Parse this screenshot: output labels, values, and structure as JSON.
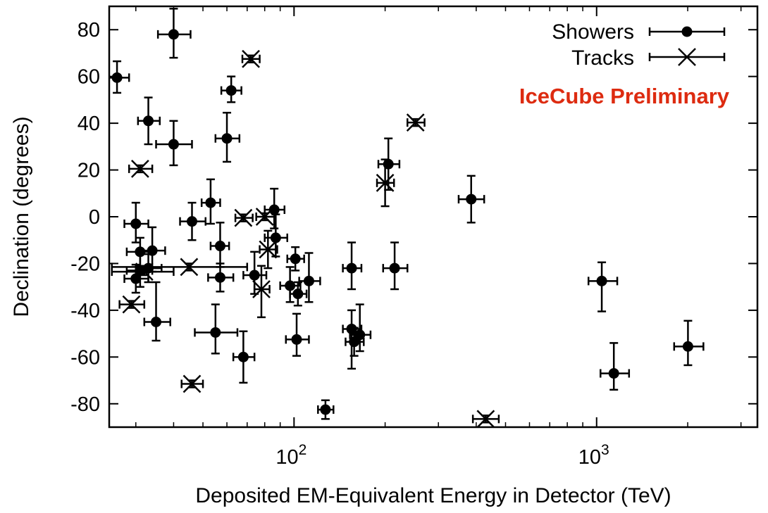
{
  "chart_data": {
    "type": "scatter",
    "title": "",
    "xlabel": "Deposited EM-Equivalent Energy in Detector (TeV)",
    "ylabel": "Declination (degrees)",
    "xscale": "log",
    "xlim": [
      24.5,
      3400
    ],
    "ylim": [
      -90,
      90
    ],
    "x_ticks": [
      {
        "value": 100,
        "base": "10",
        "exp": "2"
      },
      {
        "value": 1000,
        "base": "10",
        "exp": "3"
      }
    ],
    "y_ticks": [
      80,
      60,
      40,
      20,
      0,
      -20,
      -40,
      -60,
      -80
    ],
    "y_tick_labels": [
      "80",
      "60",
      "40",
      "20",
      "0",
      "-20",
      "-40",
      "-60",
      "-80"
    ],
    "grid": false,
    "legend_position": "top-right",
    "annotation": {
      "text": "IceCube Preliminary",
      "color": "#dd2b10"
    },
    "series": [
      {
        "name": "Showers",
        "marker": "circle",
        "points": [
          {
            "x": 26,
            "y": 59.5,
            "xerr": [
              2.2,
              2.5
            ],
            "yerr": [
              6.5,
              7
            ]
          },
          {
            "x": 40,
            "y": 78,
            "xerr": [
              4.5,
              5.5
            ],
            "yerr": [
              10,
              11
            ]
          },
          {
            "x": 33,
            "y": 41,
            "xerr": [
              2.5,
              3
            ],
            "yerr": [
              10,
              10
            ]
          },
          {
            "x": 40,
            "y": 31,
            "xerr": [
              5,
              6
            ],
            "yerr": [
              9,
              10
            ]
          },
          {
            "x": 30,
            "y": -3,
            "xerr": [
              2.5,
              3
            ],
            "yerr": [
              8,
              9
            ]
          },
          {
            "x": 31,
            "y": -15,
            "xerr": [
              3,
              3
            ],
            "yerr": [
              6,
              6
            ]
          },
          {
            "x": 34,
            "y": -14.5,
            "xerr": [
              3,
              3.5
            ],
            "yerr": [
              9,
              10
            ]
          },
          {
            "x": 30,
            "y": -26.5,
            "xerr": [
              2.5,
              3
            ],
            "yerr": [
              6,
              6
            ]
          },
          {
            "x": 31,
            "y": -23,
            "xerr": [
              3,
              3
            ],
            "yerr": [
              7,
              7
            ]
          },
          {
            "x": 33,
            "y": -22,
            "xerr": [
              3,
              3.5
            ],
            "yerr": [
              6,
              6
            ]
          },
          {
            "x": 35,
            "y": -45,
            "xerr": [
              3,
              4
            ],
            "yerr": [
              8,
              17
            ]
          },
          {
            "x": 46,
            "y": -2,
            "xerr": [
              4,
              5
            ],
            "yerr": [
              8,
              8
            ]
          },
          {
            "x": 53,
            "y": 6,
            "xerr": [
              3.5,
              4
            ],
            "yerr": [
              9,
              10
            ]
          },
          {
            "x": 60,
            "y": 33.5,
            "xerr": [
              5,
              6
            ],
            "yerr": [
              10,
              11
            ]
          },
          {
            "x": 62,
            "y": 54,
            "xerr": [
              4.5,
              5
            ],
            "yerr": [
              5,
              6
            ]
          },
          {
            "x": 57,
            "y": -12.5,
            "xerr": [
              4,
              4
            ],
            "yerr": [
              9,
              10
            ]
          },
          {
            "x": 57,
            "y": -26,
            "xerr": [
              5,
              6
            ],
            "yerr": [
              6,
              6
            ]
          },
          {
            "x": 55,
            "y": -49.5,
            "xerr": [
              8,
              10
            ],
            "yerr": [
              9,
              12
            ]
          },
          {
            "x": 68,
            "y": -60,
            "xerr": [
              5,
              6
            ],
            "yerr": [
              11,
              11
            ]
          },
          {
            "x": 74,
            "y": -25,
            "xerr": [
              6,
              7
            ],
            "yerr": [
              8,
              10
            ]
          },
          {
            "x": 86,
            "y": 3,
            "xerr": [
              6,
              7
            ],
            "yerr": [
              8,
              9
            ]
          },
          {
            "x": 87,
            "y": -9,
            "xerr": [
              7,
              8
            ],
            "yerr": [
              8,
              10
            ]
          },
          {
            "x": 97,
            "y": -29.5,
            "xerr": [
              7,
              8
            ],
            "yerr": [
              7,
              8
            ]
          },
          {
            "x": 101,
            "y": -18,
            "xerr": [
              6,
              7
            ],
            "yerr": [
              5,
              5
            ]
          },
          {
            "x": 103,
            "y": -33,
            "xerr": [
              6,
              7
            ],
            "yerr": [
              5,
              5
            ]
          },
          {
            "x": 112,
            "y": -27.5,
            "xerr": [
              8,
              10
            ],
            "yerr": [
              9,
              12
            ]
          },
          {
            "x": 102,
            "y": -52.5,
            "xerr": [
              8,
              10
            ],
            "yerr": [
              7,
              11
            ]
          },
          {
            "x": 127,
            "y": -82.5,
            "xerr": [
              7,
              8
            ],
            "yerr": [
              4,
              4
            ]
          },
          {
            "x": 155,
            "y": -22,
            "xerr": [
              10,
              12
            ],
            "yerr": [
              9,
              11
            ]
          },
          {
            "x": 155,
            "y": -48,
            "xerr": [
              10,
              12
            ],
            "yerr": [
              17,
              8
            ]
          },
          {
            "x": 158,
            "y": -53.5,
            "xerr": [
              10,
              12
            ],
            "yerr": [
              6,
              6
            ]
          },
          {
            "x": 165,
            "y": -50.5,
            "xerr": [
              12,
              14
            ],
            "yerr": [
              7,
              13
            ]
          },
          {
            "x": 205,
            "y": 22.5,
            "xerr": [
              15,
              18
            ],
            "yerr": [
              11,
              11
            ]
          },
          {
            "x": 215,
            "y": -22,
            "xerr": [
              18,
              22
            ],
            "yerr": [
              9,
              11
            ]
          },
          {
            "x": 385,
            "y": 7.5,
            "xerr": [
              35,
              40
            ],
            "yerr": [
              10,
              10
            ]
          },
          {
            "x": 1040,
            "y": -27.5,
            "xerr": [
              100,
              130
            ],
            "yerr": [
              13,
              8
            ]
          },
          {
            "x": 1140,
            "y": -67,
            "xerr": [
              110,
              140
            ],
            "yerr": [
              7,
              13
            ]
          },
          {
            "x": 2004,
            "y": -55.5,
            "xerr": [
              200,
              250
            ],
            "yerr": [
              8,
              11
            ]
          }
        ]
      },
      {
        "name": "Tracks",
        "marker": "cross",
        "points": [
          {
            "x": 72,
            "y": 67.5,
            "xerr": [
              4.5,
              5
            ],
            "yerr": [
              1.5,
              1.5
            ]
          },
          {
            "x": 31,
            "y": 20.5,
            "xerr": [
              2.5,
              3
            ],
            "yerr": [
              1.5,
              1.5
            ]
          },
          {
            "x": 252,
            "y": 40.3,
            "xerr": [
              15,
              18
            ],
            "yerr": [
              1.5,
              1.5
            ]
          },
          {
            "x": 200,
            "y": 14.5,
            "xerr": [
              12,
              14
            ],
            "yerr": [
              10,
              10
            ]
          },
          {
            "x": 68,
            "y": -0.5,
            "xerr": [
              4,
              5
            ],
            "yerr": [
              1.5,
              1.5
            ]
          },
          {
            "x": 80,
            "y": 0,
            "xerr": [
              5,
              6
            ],
            "yerr": [
              1.5,
              1.5
            ]
          },
          {
            "x": 82,
            "y": -14,
            "xerr": [
              5,
              6
            ],
            "yerr": [
              8,
              8
            ]
          },
          {
            "x": 45,
            "y": -21.5,
            "xerr": [
              20,
              25
            ],
            "yerr": [
              1.5,
              1.5
            ]
          },
          {
            "x": 32,
            "y": -23.5,
            "xerr": [
              7,
              8
            ],
            "yerr": [
              1.5,
              1.5
            ]
          },
          {
            "x": 29,
            "y": -37.5,
            "xerr": [
              2.5,
              3
            ],
            "yerr": [
              1.5,
              1.5
            ]
          },
          {
            "x": 78,
            "y": -31,
            "xerr": [
              4,
              5
            ],
            "yerr": [
              12,
              10
            ]
          },
          {
            "x": 46,
            "y": -71.5,
            "xerr": [
              3.5,
              4
            ],
            "yerr": [
              1.5,
              1.5
            ]
          },
          {
            "x": 430,
            "y": -86.5,
            "xerr": [
              40,
              45
            ],
            "yerr": [
              1.5,
              1.5
            ]
          }
        ]
      }
    ]
  }
}
